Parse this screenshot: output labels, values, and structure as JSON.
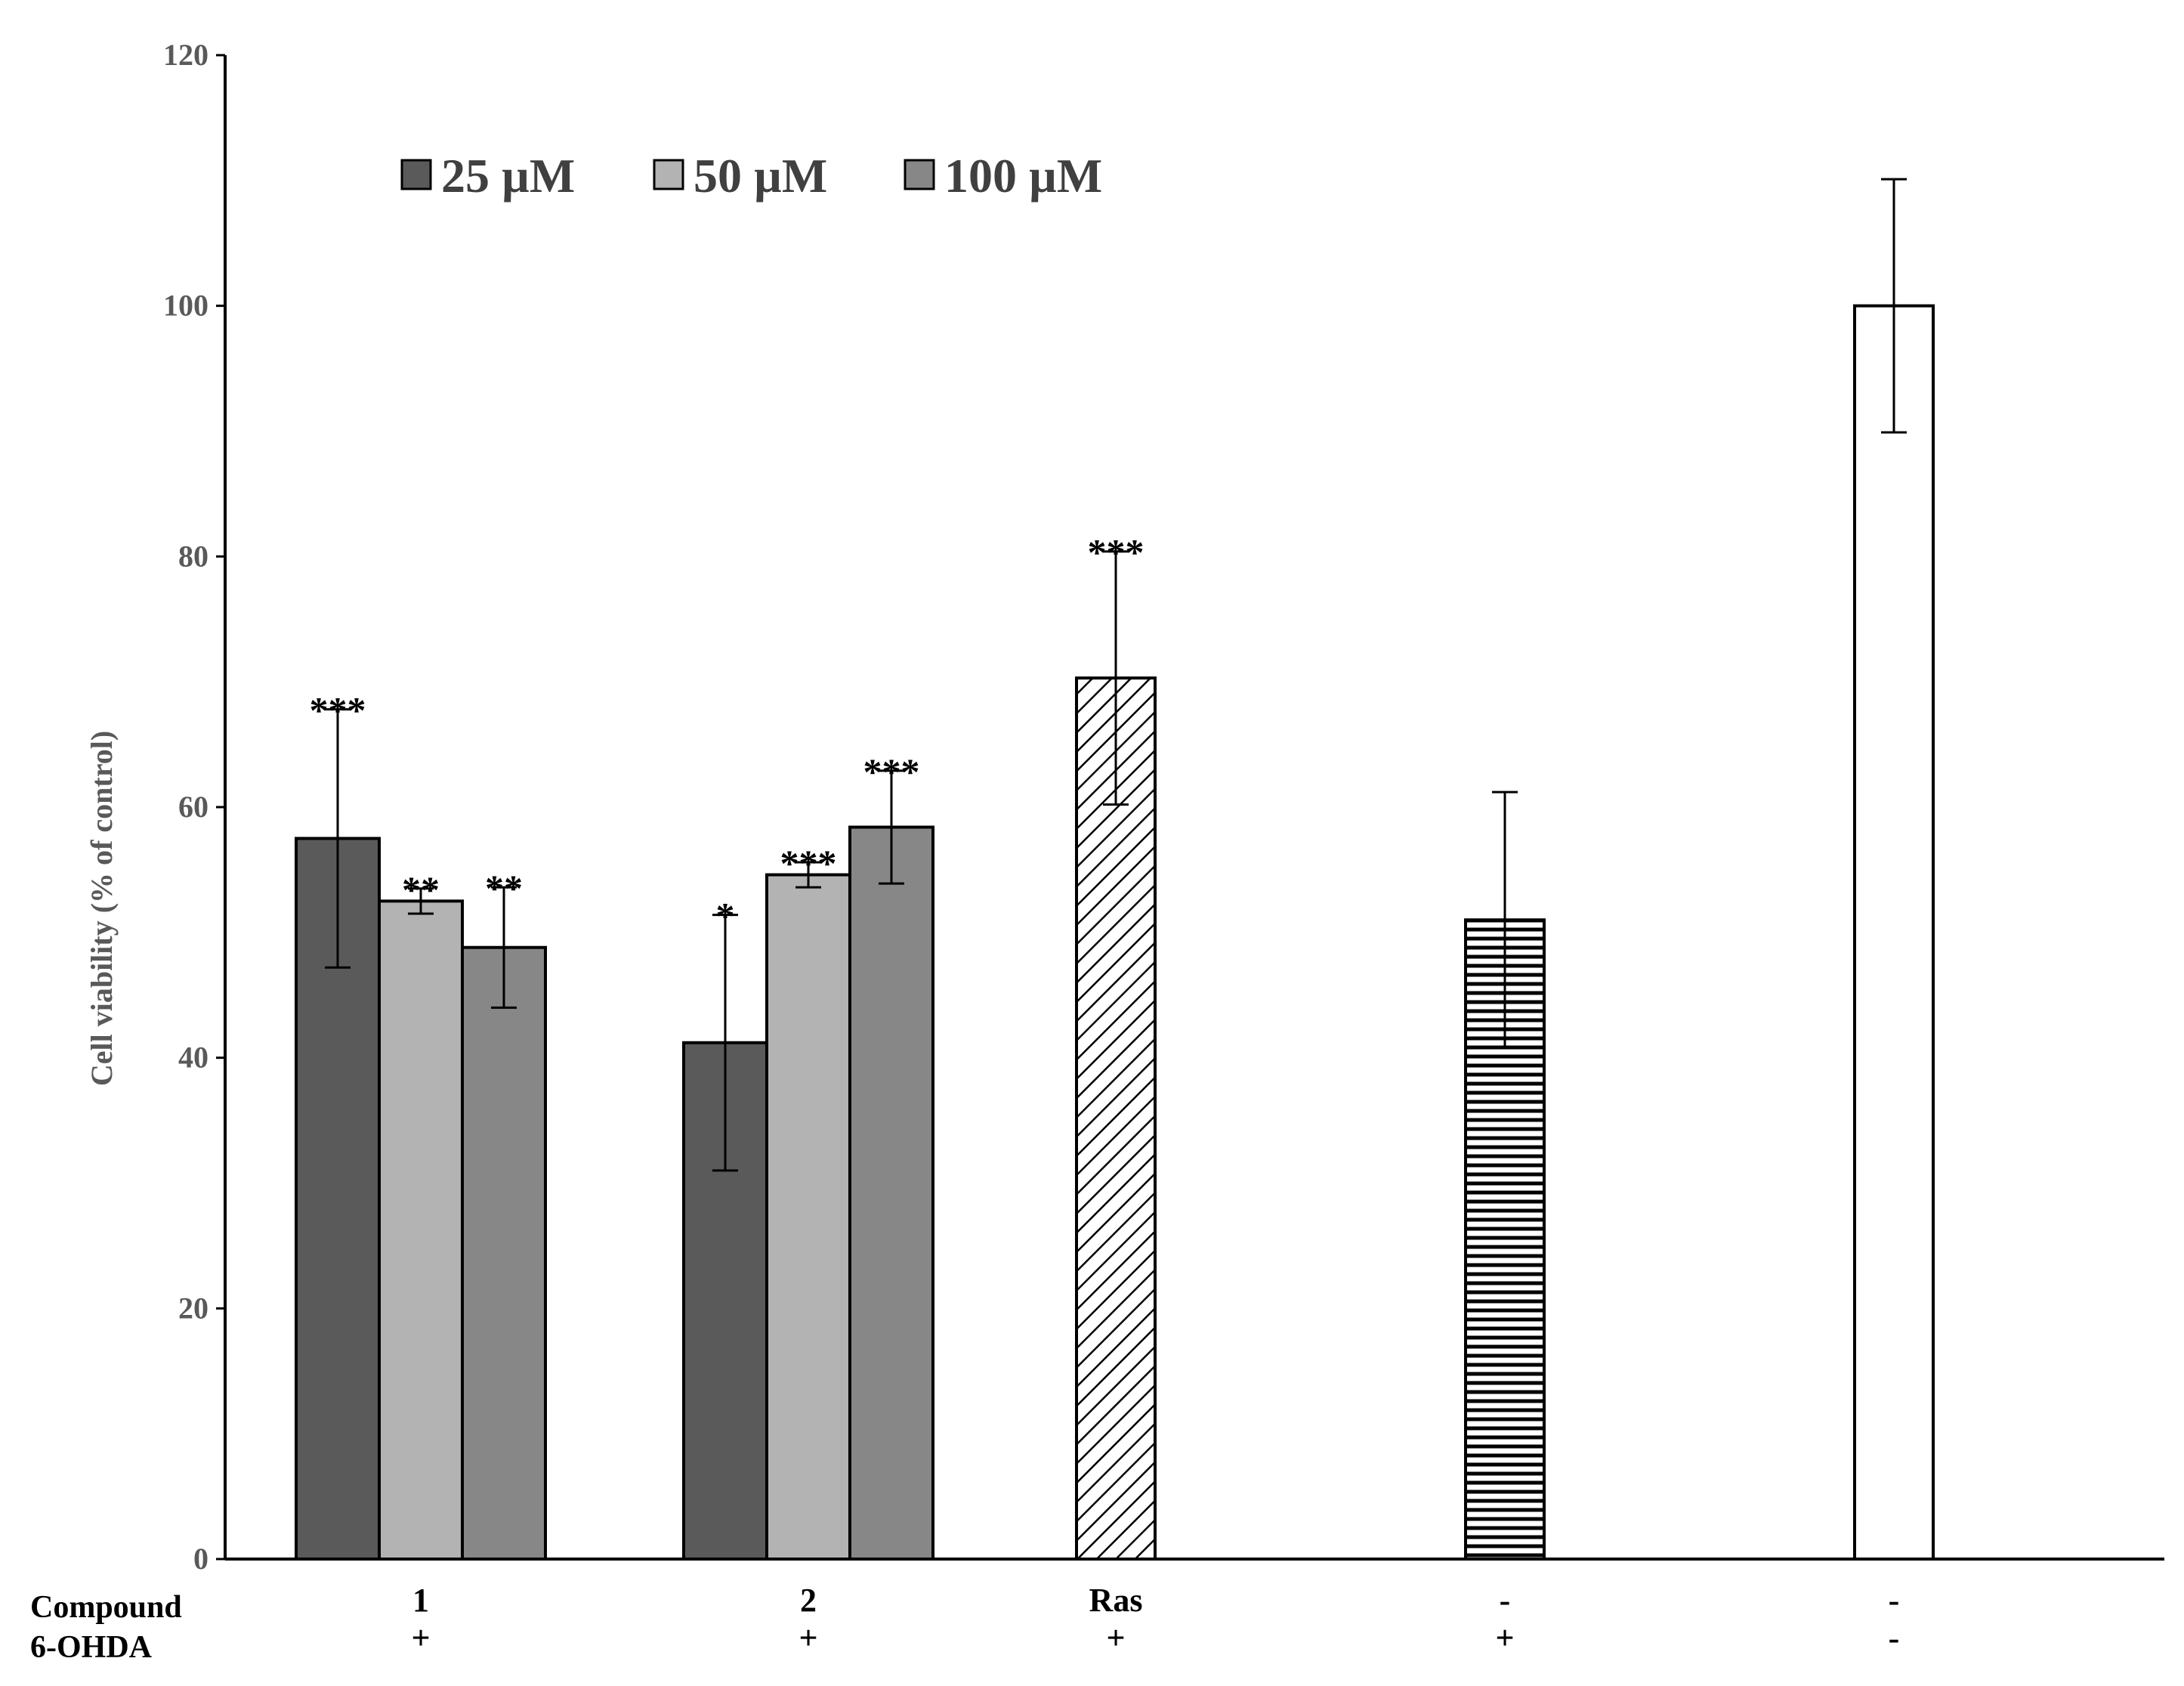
{
  "chart_data": {
    "type": "bar",
    "ylabel": "Cell viability (% of control)",
    "ylim": [
      0,
      120
    ],
    "yticks": [
      0,
      20,
      40,
      60,
      80,
      100,
      120
    ],
    "grid": false,
    "legend_position": "top-left",
    "legend": [
      {
        "label": "25 µM",
        "color": "#5a5a5a"
      },
      {
        "label": "50 µM",
        "color": "#b3b3b3"
      },
      {
        "label": "100 µM",
        "color": "#878787"
      }
    ],
    "row_labels": [
      "Compound",
      "6-OHDA"
    ],
    "groups": [
      {
        "compound": "1",
        "ohda": "+",
        "bars": [
          {
            "series": "25 µM",
            "value": 57.5,
            "error": 10.3,
            "sig": "***",
            "fill": "#5a5a5a"
          },
          {
            "series": "50 µM",
            "value": 52.5,
            "error": 1.0,
            "sig": "**",
            "fill": "#b3b3b3"
          },
          {
            "series": "100 µM",
            "value": 48.8,
            "error": 4.8,
            "sig": "**",
            "fill": "#878787"
          }
        ]
      },
      {
        "compound": "2",
        "ohda": "+",
        "bars": [
          {
            "series": "25 µM",
            "value": 41.2,
            "error": 10.2,
            "sig": "*",
            "fill": "#5a5a5a"
          },
          {
            "series": "50 µM",
            "value": 54.6,
            "error": 1.0,
            "sig": "***",
            "fill": "#b3b3b3"
          },
          {
            "series": "100 µM",
            "value": 58.4,
            "error": 4.5,
            "sig": "***",
            "fill": "#878787"
          }
        ]
      },
      {
        "compound": "Ras",
        "ohda": "+",
        "bars": [
          {
            "series": "Ras",
            "value": 70.3,
            "error": 10.1,
            "sig": "***",
            "fill": "diag"
          }
        ]
      },
      {
        "compound": "-",
        "ohda": "+",
        "bars": [
          {
            "series": "6-OHDA",
            "value": 51.0,
            "error": 10.2,
            "sig": "",
            "fill": "horiz"
          }
        ]
      },
      {
        "compound": "-",
        "ohda": "-",
        "bars": [
          {
            "series": "control",
            "value": 100.0,
            "error": 10.1,
            "sig": "",
            "fill": "#ffffff"
          }
        ]
      }
    ]
  }
}
